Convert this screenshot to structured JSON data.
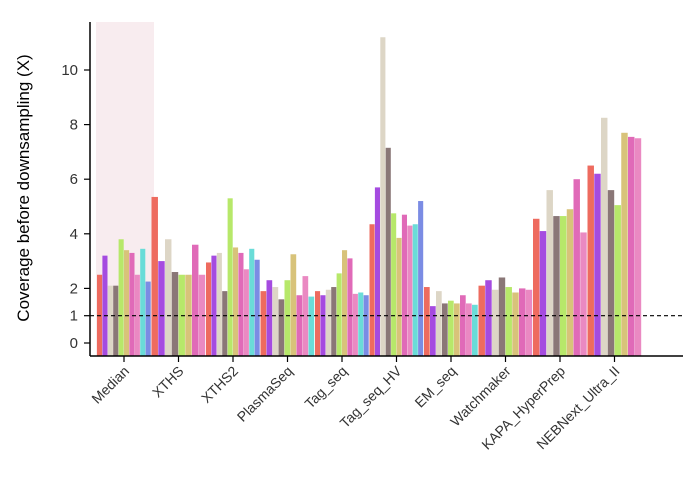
{
  "chart_data": {
    "type": "bar",
    "ylabel": "Coverage before downsampling (X)",
    "xlabel": "",
    "ylim": [
      0,
      11.5
    ],
    "yticks": [
      0,
      1,
      2,
      4,
      6,
      8,
      10
    ],
    "reference_line": 1,
    "highlight_category": "Median",
    "highlight_color": "#f8ecef",
    "categories": [
      "Median",
      "XTHS",
      "XTHS2",
      "PlasmaSeq",
      "Tag_seq",
      "Tag_seq_HV",
      "EM_seq",
      "Watchmaker",
      "KAPA_HyperPrep",
      "NEBNext_Ultra_II"
    ],
    "series_colors": [
      "#ee6b5f",
      "#a54be0",
      "#ddd6c6",
      "#8a7777",
      "#b7e86a",
      "#d8c37a",
      "#e06ab8",
      "#ea89c2",
      "#6adcd8",
      "#7b8ce4"
    ],
    "bars": [
      [
        2.5,
        3.2,
        2.1,
        2.1,
        3.8,
        3.4,
        3.3,
        2.5,
        3.45,
        2.25
      ],
      [
        5.35,
        3.0,
        3.8,
        2.6,
        2.5,
        2.5,
        3.6,
        2.5
      ],
      [
        2.95,
        3.2,
        3.3,
        1.9,
        5.3,
        3.5,
        3.3,
        2.7,
        3.45,
        3.05
      ],
      [
        1.9,
        2.3,
        2.05,
        1.6,
        2.3,
        3.25,
        1.75,
        2.45,
        1.7
      ],
      [
        1.9,
        1.75,
        1.95,
        2.05,
        2.55,
        3.4,
        3.1,
        1.8,
        1.85,
        1.75
      ],
      [
        4.35,
        5.7,
        11.2,
        7.15,
        4.75,
        3.85,
        4.7,
        4.3,
        4.35,
        5.2
      ],
      [
        2.05,
        1.35,
        1.9,
        1.45,
        1.55,
        1.45,
        1.75,
        1.45,
        1.4
      ],
      [
        2.1,
        2.3,
        1.95,
        2.4,
        2.05,
        1.85,
        2.0,
        1.95
      ],
      [
        4.55,
        4.1,
        5.6,
        4.65,
        4.65,
        4.9,
        6.0,
        4.05
      ],
      [
        6.5,
        6.2,
        8.25,
        5.6,
        5.05,
        7.7,
        7.55,
        7.5
      ]
    ]
  }
}
